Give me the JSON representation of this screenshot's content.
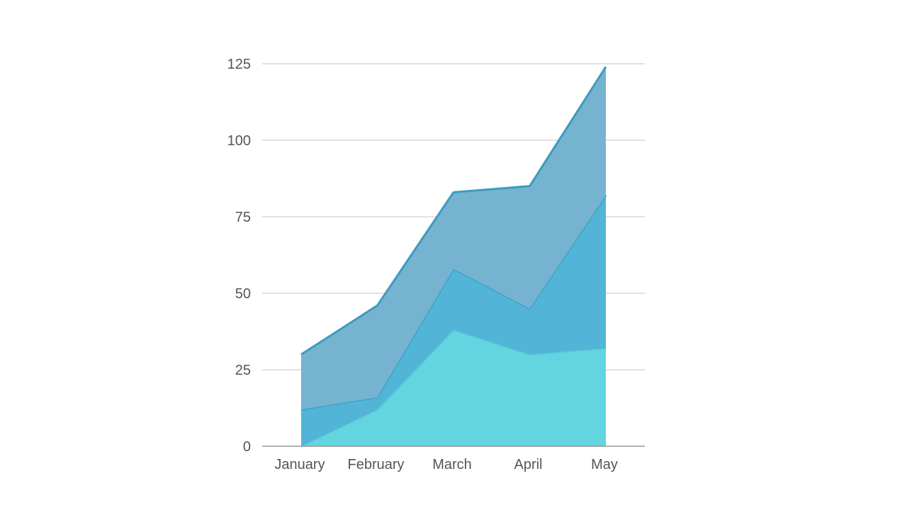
{
  "chart_data": {
    "type": "area",
    "stacked": true,
    "categories": [
      "January",
      "February",
      "March",
      "April",
      "May"
    ],
    "y_ticks": [
      0,
      25,
      50,
      75,
      100,
      125
    ],
    "ylim": [
      0,
      125
    ],
    "grid": true,
    "legend": "none",
    "series": [
      {
        "values": [
          0,
          12,
          38,
          30,
          32
        ],
        "color": "#63d5e1",
        "stroke": "#5ccbd8"
      },
      {
        "values": [
          12,
          4,
          20,
          15,
          50
        ],
        "color": "#52b5d7",
        "stroke": "#3ea4c8"
      },
      {
        "values": [
          18,
          30,
          25,
          40,
          42
        ],
        "color": "#75b3d1",
        "stroke": "#3d9bbf"
      }
    ],
    "gridline_color": "#d9d9d9",
    "axis_color": "#999999"
  }
}
